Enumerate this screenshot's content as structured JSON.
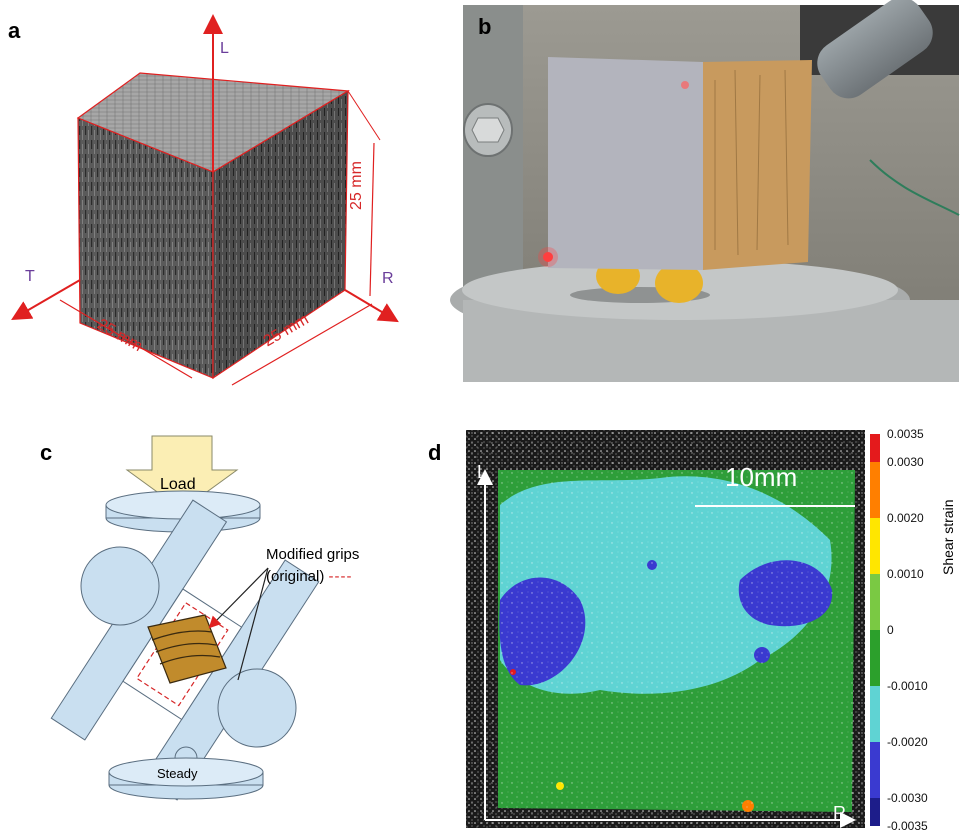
{
  "panels": {
    "a": {
      "letter": "a",
      "axes": {
        "L": "L",
        "T": "T",
        "R": "R"
      },
      "dimensions": {
        "front": "25 mm",
        "side": "25 mm",
        "height": "25 mm"
      }
    },
    "b": {
      "letter": "b"
    },
    "c": {
      "letter": "c",
      "load_label": "Load",
      "steady_label": "Steady",
      "grips_label_line1": "Modified grips",
      "grips_label_line2": "(original)",
      "dash_sample": "----"
    },
    "d": {
      "letter": "d",
      "scale_bar": "10mm",
      "axis_L": "L",
      "axis_R": "R",
      "colorbar_title": "Shear strain",
      "colorbar_ticks": [
        "0.0035",
        "0.0030",
        "0.0020",
        "0.0010",
        "0",
        "-0.0010",
        "-0.0020",
        "-0.0030",
        "-0.0035"
      ],
      "colorbar_colors": [
        "#e41a1c",
        "#ff7f00",
        "#ffe600",
        "#7ac943",
        "#2ca02c",
        "#5fd3d3",
        "#3a3ad0",
        "#1d1d8a"
      ]
    }
  }
}
